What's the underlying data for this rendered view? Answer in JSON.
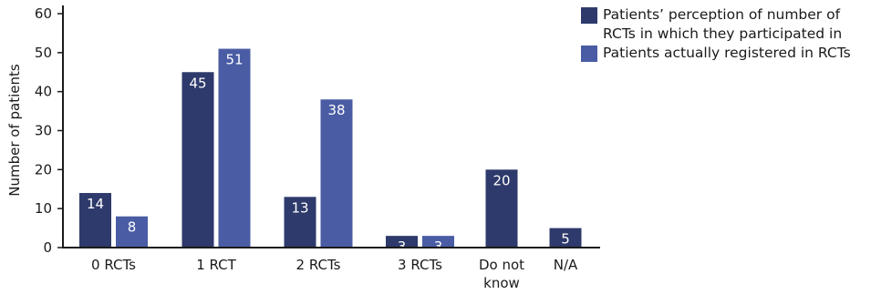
{
  "chart_data": {
    "type": "bar",
    "categories": [
      "0 RCTs",
      "1 RCT",
      "2 RCTs",
      "3 RCTs",
      "Do not\nknow",
      "N/A"
    ],
    "series": [
      {
        "name": "Patients’ perception of number of RCTs in which they participated in",
        "values": [
          14,
          45,
          13,
          3,
          20,
          5
        ],
        "color": "#2e3a6b"
      },
      {
        "name": "Patients actually registered in RCTs",
        "values": [
          8,
          51,
          38,
          3,
          null,
          null
        ],
        "color": "#4a5ca4"
      }
    ],
    "ylabel": "Number of patients",
    "ylim": [
      0,
      60
    ],
    "yticks": [
      0,
      10,
      20,
      30,
      40,
      50,
      60
    ],
    "legend_position": "top-right"
  },
  "legend": {
    "series0_label": "Patients’ perception of number of RCTs in which they participated in",
    "series1_label": "Patients actually registered in RCTs"
  }
}
